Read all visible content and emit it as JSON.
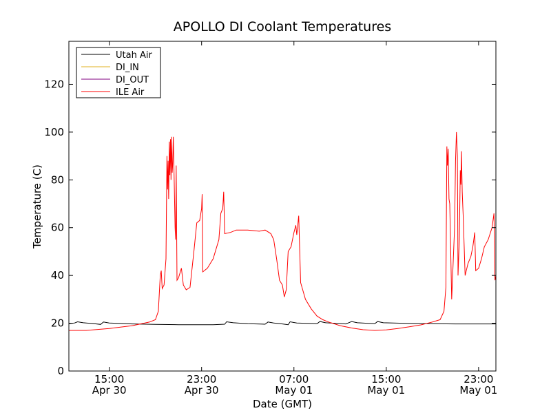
{
  "chart_data": {
    "type": "line",
    "title": "APOLLO DI Coolant Temperatures",
    "xlabel": "Date (GMT)",
    "ylabel": "Temperature (C)",
    "ylim": [
      0,
      138
    ],
    "yticks": [
      0,
      20,
      40,
      60,
      80,
      100,
      120
    ],
    "xlim": [
      "2015-04-30 11:30",
      "2015-05-02 00:30"
    ],
    "xticks": [
      {
        "time": "2015-04-30 15:00",
        "line1": "15:00",
        "line2": "Apr 30"
      },
      {
        "time": "2015-04-30 23:00",
        "line1": "23:00",
        "line2": "Apr 30"
      },
      {
        "time": "2015-05-01 07:00",
        "line1": "07:00",
        "line2": "May 01"
      },
      {
        "time": "2015-05-01 15:00",
        "line1": "15:00",
        "line2": "May 01"
      },
      {
        "time": "2015-05-01 23:00",
        "line1": "23:00",
        "line2": "May 01"
      }
    ],
    "legend_position": "top-left",
    "grid": false,
    "series": [
      {
        "name": "Utah Air",
        "color": "#000000",
        "points": [
          [
            "2015-04-30 11:30",
            19.8
          ],
          [
            "2015-04-30 12:00",
            20.1
          ],
          [
            "2015-04-30 12:15",
            20.6
          ],
          [
            "2015-04-30 12:45",
            20.2
          ],
          [
            "2015-04-30 13:30",
            19.9
          ],
          [
            "2015-04-30 14:15",
            19.5
          ],
          [
            "2015-04-30 14:30",
            20.5
          ],
          [
            "2015-04-30 15:00",
            20.1
          ],
          [
            "2015-04-30 17:00",
            19.7
          ],
          [
            "2015-04-30 19:00",
            19.5
          ],
          [
            "2015-04-30 21:00",
            19.4
          ],
          [
            "2015-04-30 23:00",
            19.4
          ],
          [
            "2015-05-01 00:00",
            19.4
          ],
          [
            "2015-05-01 01:00",
            19.6
          ],
          [
            "2015-05-01 01:10",
            20.6
          ],
          [
            "2015-05-01 01:45",
            20.2
          ],
          [
            "2015-05-01 03:00",
            19.8
          ],
          [
            "2015-05-01 04:30",
            19.6
          ],
          [
            "2015-05-01 04:45",
            20.5
          ],
          [
            "2015-05-01 05:15",
            20.1
          ],
          [
            "2015-05-01 06:00",
            19.7
          ],
          [
            "2015-05-01 06:30",
            19.4
          ],
          [
            "2015-05-01 06:40",
            20.6
          ],
          [
            "2015-05-01 07:15",
            20.1
          ],
          [
            "2015-05-01 09:00",
            19.8
          ],
          [
            "2015-05-01 09:15",
            20.7
          ],
          [
            "2015-05-01 09:45",
            20.2
          ],
          [
            "2015-05-01 11:30",
            19.7
          ],
          [
            "2015-05-01 12:00",
            20.7
          ],
          [
            "2015-05-01 12:30",
            20.2
          ],
          [
            "2015-05-01 14:00",
            19.8
          ],
          [
            "2015-05-01 14:15",
            20.7
          ],
          [
            "2015-05-01 14:45",
            20.2
          ],
          [
            "2015-05-01 17:00",
            19.9
          ],
          [
            "2015-05-01 19:00",
            19.8
          ],
          [
            "2015-05-01 21:00",
            19.7
          ],
          [
            "2015-05-01 23:00",
            19.7
          ],
          [
            "2015-05-02 00:30",
            19.7
          ]
        ]
      },
      {
        "name": "DI_IN",
        "color": "#e0b020",
        "points": []
      },
      {
        "name": "DI_OUT",
        "color": "#800080",
        "points": []
      },
      {
        "name": "ILE Air",
        "color": "#ff0000",
        "points": [
          [
            "2015-04-30 11:30",
            17.0
          ],
          [
            "2015-04-30 13:00",
            17.0
          ],
          [
            "2015-04-30 15:00",
            17.8
          ],
          [
            "2015-04-30 17:00",
            19.0
          ],
          [
            "2015-04-30 18:30",
            20.5
          ],
          [
            "2015-04-30 19:00",
            21.5
          ],
          [
            "2015-04-30 19:15",
            25.0
          ],
          [
            "2015-04-30 19:25",
            40.0
          ],
          [
            "2015-04-30 19:30",
            42.0
          ],
          [
            "2015-04-30 19:35",
            34.5
          ],
          [
            "2015-04-30 19:45",
            36.0
          ],
          [
            "2015-04-30 19:55",
            47.0
          ],
          [
            "2015-04-30 20:00",
            90.0
          ],
          [
            "2015-04-30 20:03",
            76.0
          ],
          [
            "2015-04-30 20:06",
            88.0
          ],
          [
            "2015-04-30 20:09",
            72.0
          ],
          [
            "2015-04-30 20:12",
            96.0
          ],
          [
            "2015-04-30 20:15",
            82.0
          ],
          [
            "2015-04-30 20:18",
            97.0
          ],
          [
            "2015-04-30 20:21",
            80.0
          ],
          [
            "2015-04-30 20:24",
            98.0
          ],
          [
            "2015-04-30 20:27",
            83.0
          ],
          [
            "2015-04-30 20:30",
            87.0
          ],
          [
            "2015-04-30 20:33",
            98.0
          ],
          [
            "2015-04-30 20:36",
            86.0
          ],
          [
            "2015-04-30 20:42",
            60.0
          ],
          [
            "2015-04-30 20:45",
            55.0
          ],
          [
            "2015-04-30 20:48",
            86.0
          ],
          [
            "2015-04-30 20:52",
            38.0
          ],
          [
            "2015-04-30 21:00",
            39.0
          ],
          [
            "2015-04-30 21:15",
            43.0
          ],
          [
            "2015-04-30 21:25",
            36.0
          ],
          [
            "2015-04-30 21:40",
            34.0
          ],
          [
            "2015-04-30 22:00",
            35.0
          ],
          [
            "2015-04-30 22:20",
            50.0
          ],
          [
            "2015-04-30 22:35",
            62.0
          ],
          [
            "2015-04-30 22:50",
            63.0
          ],
          [
            "2015-04-30 23:00",
            68.0
          ],
          [
            "2015-04-30 23:03",
            74.0
          ],
          [
            "2015-04-30 23:06",
            41.5
          ],
          [
            "2015-04-30 23:30",
            43.0
          ],
          [
            "2015-05-01 00:00",
            47.0
          ],
          [
            "2015-05-01 00:30",
            55.0
          ],
          [
            "2015-05-01 00:40",
            66.0
          ],
          [
            "2015-05-01 00:50",
            68.0
          ],
          [
            "2015-05-01 00:55",
            75.0
          ],
          [
            "2015-05-01 01:00",
            57.5
          ],
          [
            "2015-05-01 01:30",
            58.0
          ],
          [
            "2015-05-01 02:00",
            59.0
          ],
          [
            "2015-05-01 03:00",
            59.0
          ],
          [
            "2015-05-01 04:00",
            58.5
          ],
          [
            "2015-05-01 04:30",
            59.0
          ],
          [
            "2015-05-01 05:00",
            57.5
          ],
          [
            "2015-05-01 05:15",
            55.0
          ],
          [
            "2015-05-01 05:30",
            47.0
          ],
          [
            "2015-05-01 05:45",
            38.0
          ],
          [
            "2015-05-01 06:00",
            36.0
          ],
          [
            "2015-05-01 06:10",
            31.0
          ],
          [
            "2015-05-01 06:20",
            34.0
          ],
          [
            "2015-05-01 06:30",
            50.0
          ],
          [
            "2015-05-01 06:45",
            52.0
          ],
          [
            "2015-05-01 07:00",
            58.0
          ],
          [
            "2015-05-01 07:10",
            61.0
          ],
          [
            "2015-05-01 07:15",
            57.0
          ],
          [
            "2015-05-01 07:25",
            65.0
          ],
          [
            "2015-05-01 07:35",
            37.0
          ],
          [
            "2015-05-01 08:00",
            30.0
          ],
          [
            "2015-05-01 08:30",
            26.0
          ],
          [
            "2015-05-01 09:00",
            23.0
          ],
          [
            "2015-05-01 09:30",
            21.5
          ],
          [
            "2015-05-01 10:00",
            20.5
          ],
          [
            "2015-05-01 11:00",
            19.0
          ],
          [
            "2015-05-01 12:00",
            18.0
          ],
          [
            "2015-05-01 13:00",
            17.3
          ],
          [
            "2015-05-01 14:00",
            17.0
          ],
          [
            "2015-05-01 15:00",
            17.2
          ],
          [
            "2015-05-01 16:00",
            17.8
          ],
          [
            "2015-05-01 17:00",
            18.5
          ],
          [
            "2015-05-01 18:00",
            19.3
          ],
          [
            "2015-05-01 19:00",
            20.5
          ],
          [
            "2015-05-01 19:40",
            21.5
          ],
          [
            "2015-05-01 20:00",
            25.0
          ],
          [
            "2015-05-01 20:10",
            35.0
          ],
          [
            "2015-05-01 20:15",
            94.0
          ],
          [
            "2015-05-01 20:18",
            86.0
          ],
          [
            "2015-05-01 20:22",
            93.0
          ],
          [
            "2015-05-01 20:26",
            72.0
          ],
          [
            "2015-05-01 20:30",
            70.0
          ],
          [
            "2015-05-01 20:40",
            30.0
          ],
          [
            "2015-05-01 20:55",
            60.0
          ],
          [
            "2015-05-01 21:00",
            88.0
          ],
          [
            "2015-05-01 21:05",
            100.0
          ],
          [
            "2015-05-01 21:10",
            90.0
          ],
          [
            "2015-05-01 21:13",
            40.0
          ],
          [
            "2015-05-01 21:20",
            55.0
          ],
          [
            "2015-05-01 21:25",
            84.0
          ],
          [
            "2015-05-01 21:28",
            78.0
          ],
          [
            "2015-05-01 21:31",
            92.0
          ],
          [
            "2015-05-01 21:35",
            75.0
          ],
          [
            "2015-05-01 21:40",
            65.0
          ],
          [
            "2015-05-01 21:50",
            40.0
          ],
          [
            "2015-05-01 22:05",
            45.0
          ],
          [
            "2015-05-01 22:20",
            48.0
          ],
          [
            "2015-05-01 22:30",
            52.0
          ],
          [
            "2015-05-01 22:40",
            58.0
          ],
          [
            "2015-05-01 22:45",
            42.0
          ],
          [
            "2015-05-01 23:00",
            43.0
          ],
          [
            "2015-05-01 23:15",
            47.0
          ],
          [
            "2015-05-01 23:30",
            52.0
          ],
          [
            "2015-05-01 23:50",
            55.0
          ],
          [
            "2015-05-02 00:10",
            60.0
          ],
          [
            "2015-05-02 00:20",
            66.0
          ],
          [
            "2015-05-02 00:25",
            38.0
          ],
          [
            "2015-05-02 00:30",
            40.0
          ]
        ]
      }
    ]
  }
}
